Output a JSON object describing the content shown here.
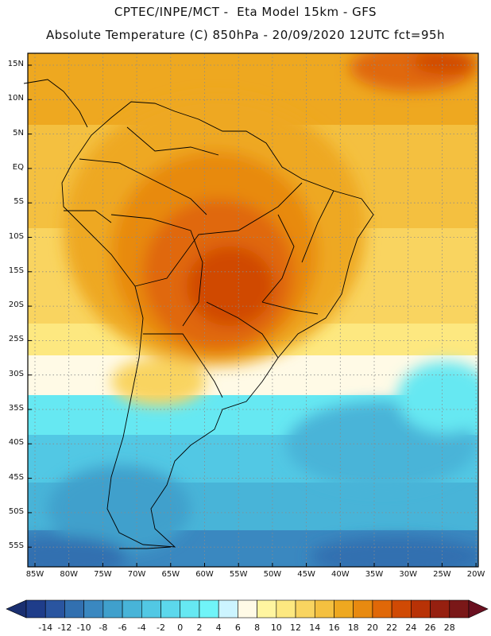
{
  "header": {
    "line1": "CPTEC/INPE/MCT -  Eta Model 15km - GFS",
    "line2": "Absolute Temperature (C) 850hPa - 20/09/2020 12UTC fct=95h"
  },
  "map": {
    "lat_labels": [
      "15N",
      "10N",
      "5N",
      "EQ",
      "5S",
      "10S",
      "15S",
      "20S",
      "25S",
      "30S",
      "35S",
      "40S",
      "45S",
      "50S",
      "55S"
    ],
    "lon_labels": [
      "85W",
      "80W",
      "75W",
      "70W",
      "65W",
      "60W",
      "55W",
      "50W",
      "45W",
      "40W",
      "35W",
      "30W",
      "25W",
      "20W"
    ]
  },
  "colorbar": {
    "labels": [
      "-14",
      "-12",
      "-10",
      "-8",
      "-6",
      "-4",
      "-2",
      "0",
      "2",
      "4",
      "6",
      "8",
      "10",
      "12",
      "14",
      "16",
      "18",
      "20",
      "22",
      "24",
      "26",
      "28"
    ],
    "colors": [
      "#1f3d8a",
      "#2a55a0",
      "#3270b0",
      "#3a88c0",
      "#40a0cc",
      "#48b4d8",
      "#52c8e4",
      "#5cd8ec",
      "#66e8f2",
      "#70f4f8",
      "#ccf4ff",
      "#fffae6",
      "#fff5a0",
      "#fde880",
      "#f9d460",
      "#f4c040",
      "#eea820",
      "#e88a10",
      "#e06808",
      "#d04a04",
      "#b83206",
      "#962010",
      "#7a1818"
    ],
    "under_color": "#1a2f70",
    "over_color": "#6a1020"
  }
}
